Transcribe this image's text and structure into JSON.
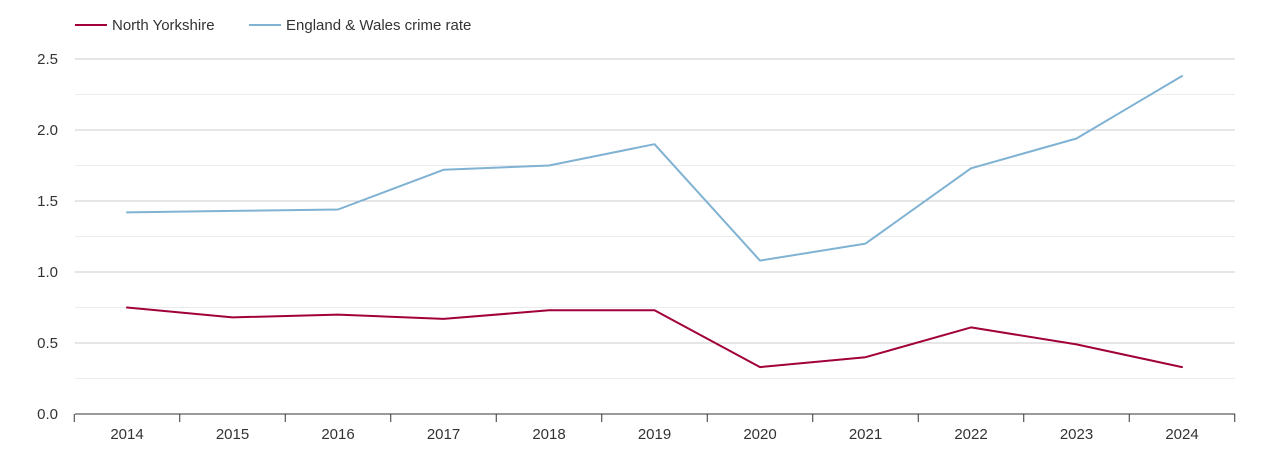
{
  "chart_data": {
    "type": "line",
    "x": [
      "2014",
      "2015",
      "2016",
      "2017",
      "2018",
      "2019",
      "2020",
      "2021",
      "2022",
      "2023",
      "2024"
    ],
    "ylim": [
      0,
      2.5
    ],
    "yticks": [
      "0.0",
      "0.5",
      "1.0",
      "1.5",
      "2.0",
      "2.5"
    ],
    "grid": true,
    "legend_position": "top-left",
    "series": [
      {
        "name": "North Yorkshire",
        "color": "#a1003a",
        "values": [
          0.75,
          0.68,
          0.7,
          0.67,
          0.73,
          0.73,
          0.33,
          0.4,
          0.61,
          0.49,
          0.33
        ]
      },
      {
        "name": "England & Wales crime rate",
        "color": "#7fb2d3",
        "values": [
          1.42,
          1.43,
          1.44,
          1.72,
          1.75,
          1.9,
          1.08,
          1.2,
          1.73,
          1.94,
          2.38
        ]
      }
    ]
  }
}
